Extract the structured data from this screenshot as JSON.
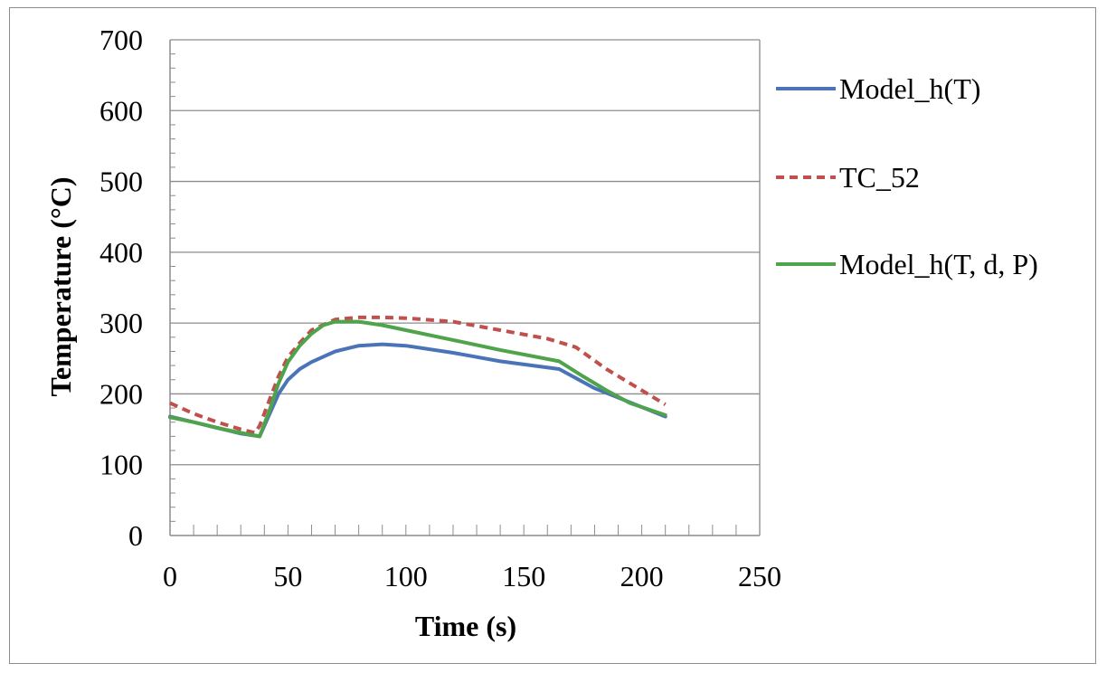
{
  "chart_data": {
    "type": "line",
    "xlabel": "Time (s)",
    "ylabel": "Temperature (°C)",
    "xlim": [
      0,
      250
    ],
    "ylim": [
      0,
      700
    ],
    "x_ticks": [
      0,
      50,
      100,
      150,
      200,
      250
    ],
    "y_ticks": [
      0,
      100,
      200,
      300,
      400,
      500,
      600,
      700
    ],
    "x_minor_step": 10,
    "y_minor_step": 20,
    "grid": "horizontal major",
    "legend_position": "right",
    "series": [
      {
        "name": "Model_h(T)",
        "color": "#4a73b8",
        "style": "solid",
        "x": [
          0,
          10,
          20,
          30,
          38,
          42,
          46,
          50,
          55,
          60,
          70,
          80,
          90,
          100,
          120,
          140,
          165,
          180,
          195,
          210
        ],
        "y": [
          168,
          160,
          152,
          144,
          140,
          170,
          200,
          220,
          235,
          245,
          260,
          268,
          270,
          268,
          258,
          246,
          235,
          208,
          188,
          168
        ]
      },
      {
        "name": "TC_52",
        "color": "#c0504d",
        "style": "dashed",
        "x": [
          0,
          10,
          20,
          30,
          36,
          38,
          42,
          46,
          50,
          55,
          60,
          70,
          80,
          90,
          100,
          120,
          140,
          160,
          172,
          185,
          200,
          210
        ],
        "y": [
          187,
          172,
          160,
          150,
          145,
          155,
          190,
          225,
          252,
          272,
          290,
          305,
          308,
          308,
          307,
          302,
          290,
          278,
          266,
          235,
          205,
          185
        ]
      },
      {
        "name": "Model_h(T, d, P)",
        "color": "#4fa34a",
        "style": "solid",
        "x": [
          0,
          10,
          20,
          30,
          38,
          42,
          46,
          50,
          55,
          60,
          65,
          70,
          80,
          90,
          100,
          120,
          140,
          165,
          175,
          185,
          195,
          210
        ],
        "y": [
          167,
          160,
          152,
          145,
          140,
          175,
          215,
          245,
          268,
          285,
          297,
          302,
          302,
          297,
          290,
          276,
          262,
          246,
          225,
          205,
          187,
          170
        ]
      }
    ]
  }
}
